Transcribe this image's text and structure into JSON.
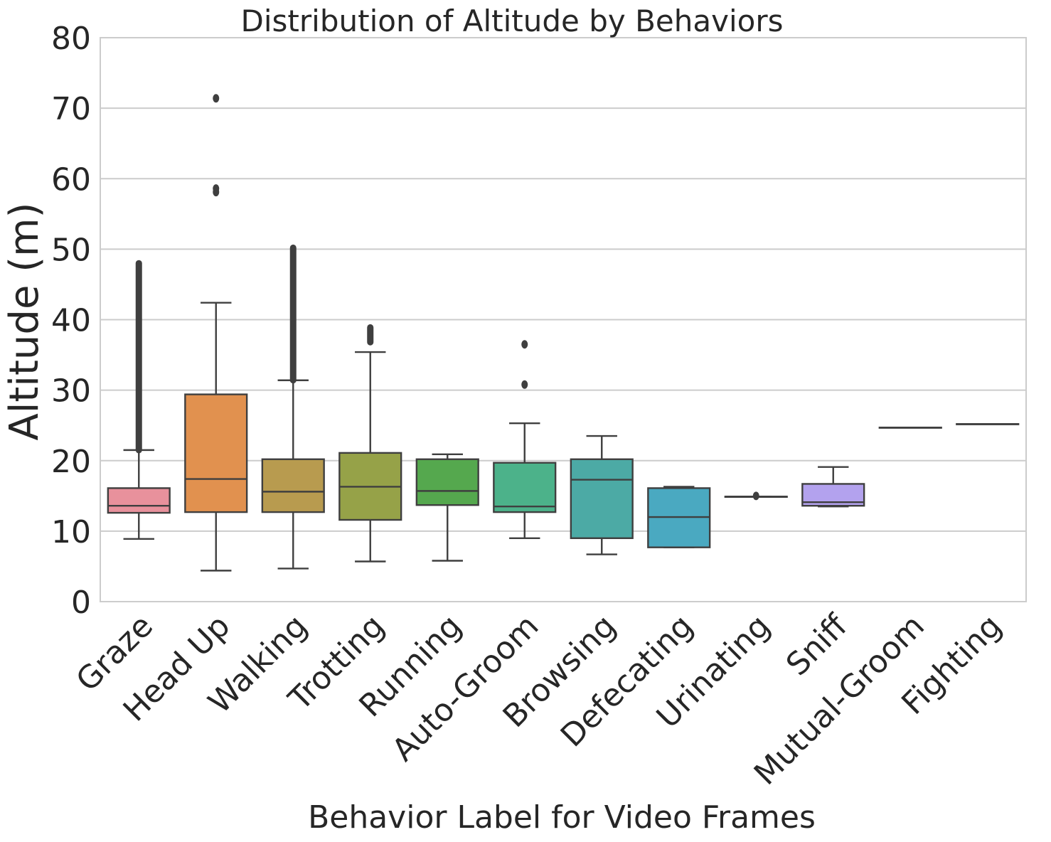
{
  "chart_data": {
    "type": "boxplot",
    "title": "Distribution of Altitude by Behaviors",
    "xlabel": "Behavior Label for Video Frames",
    "ylabel": "Altitude (m)",
    "ylim": [
      0,
      80
    ],
    "yticks": [
      0,
      10,
      20,
      30,
      40,
      50,
      60,
      70,
      80
    ],
    "grid": true,
    "categories": [
      "Graze",
      "Head Up",
      "Walking",
      "Trotting",
      "Running",
      "Auto-Groom",
      "Browsing",
      "Defecating",
      "Urinating",
      "Sniff",
      "Mutual-Groom",
      "Fighting"
    ],
    "boxes": [
      {
        "label": "Graze",
        "whislo": 8.9,
        "q1": 12.6,
        "med": 13.6,
        "q3": 16.1,
        "whishi": 21.5,
        "fliers_range": [
          21.5,
          48.0
        ],
        "color": "#e8919c"
      },
      {
        "label": "Head Up",
        "whislo": 4.4,
        "q1": 12.7,
        "med": 17.4,
        "q3": 29.4,
        "whishi": 42.4,
        "fliers": [
          58.1,
          58.6,
          71.4
        ],
        "color": "#e1914f"
      },
      {
        "label": "Walking",
        "whislo": 4.7,
        "q1": 12.7,
        "med": 15.6,
        "q3": 20.2,
        "whishi": 31.4,
        "fliers_range": [
          31.4,
          50.2
        ],
        "color": "#b89b4f"
      },
      {
        "label": "Trotting",
        "whislo": 5.7,
        "q1": 11.6,
        "med": 16.3,
        "q3": 21.1,
        "whishi": 35.4,
        "fliers_range": [
          36.8,
          38.9
        ],
        "color": "#96a248"
      },
      {
        "label": "Running",
        "whislo": 5.8,
        "q1": 13.7,
        "med": 15.7,
        "q3": 20.2,
        "whishi": 20.9,
        "fliers": [],
        "color": "#55a84e"
      },
      {
        "label": "Auto-Groom",
        "whislo": 9.0,
        "q1": 12.7,
        "med": 13.5,
        "q3": 19.7,
        "whishi": 25.3,
        "fliers": [
          30.8,
          36.5
        ],
        "color": "#4cb28a"
      },
      {
        "label": "Browsing",
        "whislo": 6.7,
        "q1": 9.0,
        "med": 17.3,
        "q3": 20.2,
        "whishi": 23.5,
        "fliers": [],
        "color": "#4caaa5"
      },
      {
        "label": "Defecating",
        "whislo": 7.7,
        "q1": 7.7,
        "med": 12.0,
        "q3": 16.1,
        "whishi": 16.3,
        "fliers": [],
        "color": "#4aa9c1"
      },
      {
        "label": "Urinating",
        "whislo": 14.9,
        "q1": 14.9,
        "med": 14.9,
        "q3": 14.9,
        "whishi": 14.9,
        "fliers": [
          15.0
        ],
        "color": "#6fa7e0"
      },
      {
        "label": "Sniff",
        "whislo": 13.5,
        "q1": 13.6,
        "med": 14.1,
        "q3": 16.7,
        "whishi": 19.1,
        "fliers": [],
        "color": "#b3a2ee"
      },
      {
        "label": "Mutual-Groom",
        "whislo": 24.7,
        "q1": 24.7,
        "med": 24.7,
        "q3": 24.7,
        "whishi": 24.7,
        "fliers": [],
        "color": "#dba0eb"
      },
      {
        "label": "Fighting",
        "whislo": 25.2,
        "q1": 25.2,
        "med": 25.2,
        "q3": 25.2,
        "whishi": 25.2,
        "fliers": [],
        "color": "#f39bd7"
      }
    ]
  }
}
